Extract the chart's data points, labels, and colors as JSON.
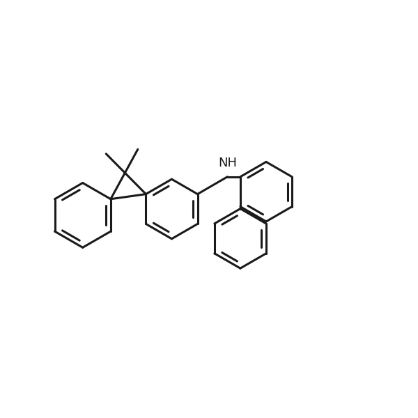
{
  "background_color": "#ffffff",
  "line_color": "#1a1a1a",
  "line_width": 2.2,
  "font_size": 14,
  "figsize": [
    6.0,
    6.0
  ],
  "dpi": 100
}
